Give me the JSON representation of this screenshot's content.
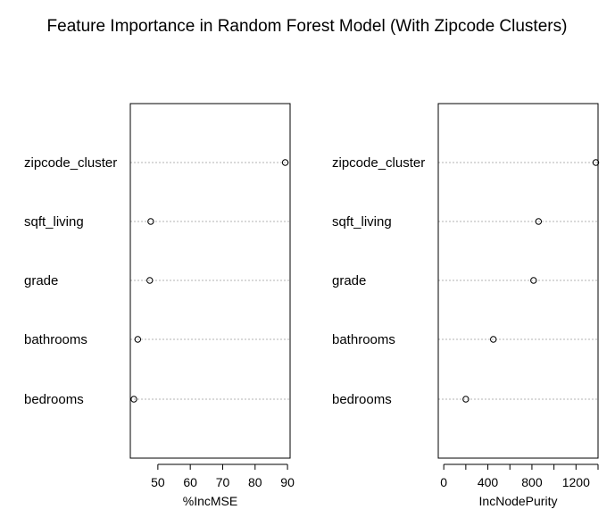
{
  "title": "Feature Importance in Random Forest Model (With Zipcode Clusters)",
  "chart_data": [
    {
      "type": "scatter",
      "categories": [
        "zipcode_cluster",
        "sqft_living",
        "grade",
        "bathrooms",
        "bedrooms"
      ],
      "values": [
        89.3,
        47.8,
        47.5,
        43.8,
        42.6
      ],
      "xlabel": "%IncMSE",
      "xlim": [
        41.5,
        90.8
      ],
      "xticks": [
        50,
        60,
        70,
        80,
        90
      ]
    },
    {
      "type": "scatter",
      "categories": [
        "zipcode_cluster",
        "sqft_living",
        "grade",
        "bathrooms",
        "bedrooms"
      ],
      "values": [
        1380,
        860,
        815,
        450,
        200
      ],
      "xlabel": "IncNodePurity",
      "xlim": [
        -50,
        1400
      ],
      "xticks": [
        0,
        200,
        400,
        600,
        800,
        1000,
        1200,
        1400
      ],
      "xtick_labels": [
        "0",
        "",
        "400",
        "",
        "800",
        "",
        "1200",
        ""
      ]
    }
  ]
}
